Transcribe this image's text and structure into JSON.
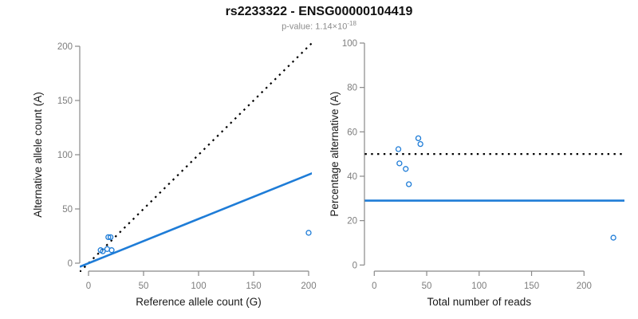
{
  "header": {
    "title": "rs2233322 - ENSG00000104419",
    "subtitle_prefix": "p-value: 1.14×10",
    "subtitle_exponent": "-18"
  },
  "colors": {
    "accent_blue": "#1e7cd7",
    "axis_gray": "#898989",
    "tick_label_gray": "#7d7d7d",
    "axis_title_color": "#1a1a1a",
    "reference_line_black": "#000000"
  },
  "chart_data": [
    {
      "type": "scatter",
      "panel": "left",
      "xlabel": "Reference allele count (G)",
      "ylabel": "Alternative allele count (A)",
      "xticks": [
        0,
        50,
        100,
        150,
        200
      ],
      "yticks": [
        0,
        50,
        100,
        150,
        200
      ],
      "xlim": [
        0,
        200
      ],
      "ylim": [
        0,
        200
      ],
      "grid": false,
      "legend": null,
      "marker": "open-circle",
      "points": [
        {
          "x": 11,
          "y": 12
        },
        {
          "x": 13,
          "y": 11
        },
        {
          "x": 17,
          "y": 13
        },
        {
          "x": 21,
          "y": 12
        },
        {
          "x": 18,
          "y": 24
        },
        {
          "x": 20,
          "y": 24
        },
        {
          "x": 200,
          "y": 28
        }
      ],
      "lines": [
        {
          "name": "identity-line",
          "style": "dotted",
          "color": "#000000",
          "x1": -8,
          "y1": -8,
          "x2": 206,
          "y2": 206
        },
        {
          "name": "expected-ratio-line",
          "style": "solid",
          "color": "#1e7cd7",
          "x1": -8,
          "y1": -3.3,
          "x2": 206,
          "y2": 84.1
        }
      ]
    },
    {
      "type": "scatter",
      "panel": "right",
      "xlabel": "Total number of reads",
      "ylabel": "Percentage alternative (A)",
      "xticks": [
        0,
        50,
        100,
        150,
        200
      ],
      "yticks": [
        0,
        20,
        40,
        60,
        80,
        100
      ],
      "xlim": [
        0,
        230
      ],
      "ylim": [
        0,
        100
      ],
      "grid": false,
      "legend": null,
      "marker": "open-circle",
      "points": [
        {
          "x": 23,
          "y": 52.2
        },
        {
          "x": 24,
          "y": 45.8
        },
        {
          "x": 30,
          "y": 43.3
        },
        {
          "x": 33,
          "y": 36.4
        },
        {
          "x": 42,
          "y": 57.1
        },
        {
          "x": 44,
          "y": 54.5
        },
        {
          "x": 228,
          "y": 12.3
        }
      ],
      "lines": [
        {
          "name": "fifty-percent-line",
          "style": "dotted",
          "color": "#000000",
          "x1": -9,
          "y1": 50,
          "x2": 239,
          "y2": 50
        },
        {
          "name": "expected-percentage-line",
          "style": "solid",
          "color": "#1e7cd7",
          "x1": -9,
          "y1": 29,
          "x2": 239,
          "y2": 29
        }
      ]
    }
  ]
}
